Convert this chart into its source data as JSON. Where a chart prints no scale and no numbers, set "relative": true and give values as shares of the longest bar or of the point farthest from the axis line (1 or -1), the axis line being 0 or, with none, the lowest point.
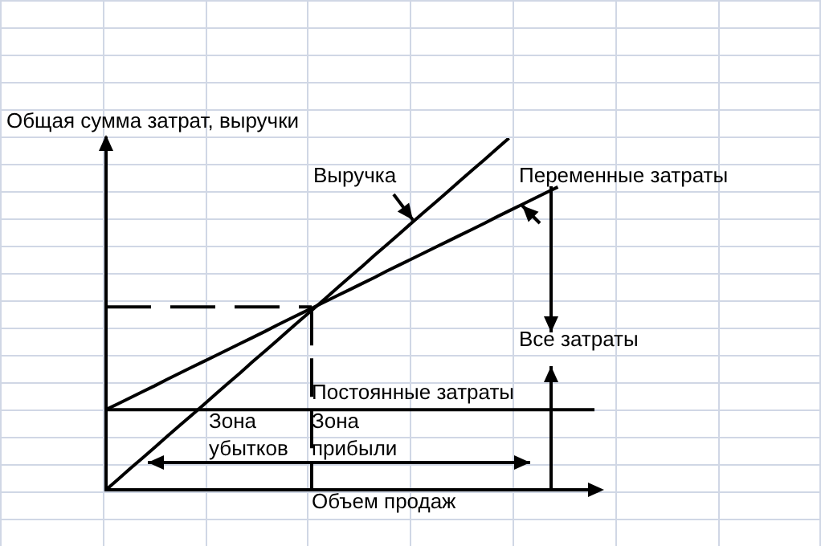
{
  "chart_data": {
    "type": "line",
    "xlabel": "Объем продаж",
    "ylabel": "Общая сумма затрат, выручки",
    "relative": true,
    "legend": false,
    "grid": false,
    "marker": "none",
    "categories": [
      null,
      null,
      null,
      null,
      null,
      null,
      null,
      null,
      null,
      null,
      null,
      null,
      null,
      null,
      null,
      null,
      null,
      null,
      null,
      null,
      null,
      null,
      null,
      null,
      null,
      null,
      null,
      null,
      null,
      null,
      null,
      null,
      null,
      null,
      null,
      null,
      null,
      null,
      null,
      null,
      null
    ],
    "series": [
      {
        "name": "Выручка",
        "color": "#000000",
        "values": [
          0,
          0.03,
          0.061,
          0.091,
          0.121,
          0.152,
          0.182,
          0.212,
          0.242,
          0.273,
          0.303,
          0.333,
          0.364,
          0.394,
          0.424,
          0.455,
          0.485,
          0.515,
          0.545,
          0.576,
          0.606,
          0.636,
          0.667,
          0.697,
          0.727,
          0.758,
          0.788,
          0.818,
          0.848,
          0.879,
          0.909,
          0.939,
          0.97,
          1,
          null,
          null,
          null,
          null,
          null,
          null,
          null
        ]
      },
      {
        "name": "Переменные затраты",
        "color": "#000000",
        "values": [
          0.228,
          0.245,
          0.262,
          0.279,
          0.296,
          0.314,
          0.331,
          0.348,
          0.365,
          0.382,
          0.399,
          0.416,
          0.433,
          0.45,
          0.468,
          0.485,
          0.502,
          0.519,
          0.536,
          0.553,
          0.57,
          0.587,
          0.604,
          0.622,
          0.639,
          0.656,
          0.673,
          0.69,
          0.707,
          0.724,
          0.741,
          0.758,
          0.776,
          0.793,
          0.81,
          0.827,
          0.844,
          0.861,
          null,
          null,
          null
        ]
      },
      {
        "name": "Постоянные затраты",
        "color": "#000000",
        "values": [
          0.228,
          0.228,
          0.228,
          0.228,
          0.228,
          0.228,
          0.228,
          0.228,
          0.228,
          0.228,
          0.228,
          0.228,
          0.228,
          0.228,
          0.228,
          0.228,
          0.228,
          0.228,
          0.228,
          0.228,
          0.228,
          0.228,
          0.228,
          0.228,
          0.228,
          0.228,
          0.228,
          0.228,
          0.228,
          0.228,
          0.228,
          0.228,
          0.228,
          0.228,
          0.228,
          0.228,
          0.228,
          0.228,
          0.228,
          0.228,
          0.228
        ]
      }
    ],
    "ref_lines": [
      {
        "axis": "y",
        "value": 0.52,
        "line_style": "dashed",
        "color": "#000000"
      }
    ],
    "annotations": [
      "Все затраты",
      "Зона убытков",
      "Зона прибыли"
    ]
  }
}
